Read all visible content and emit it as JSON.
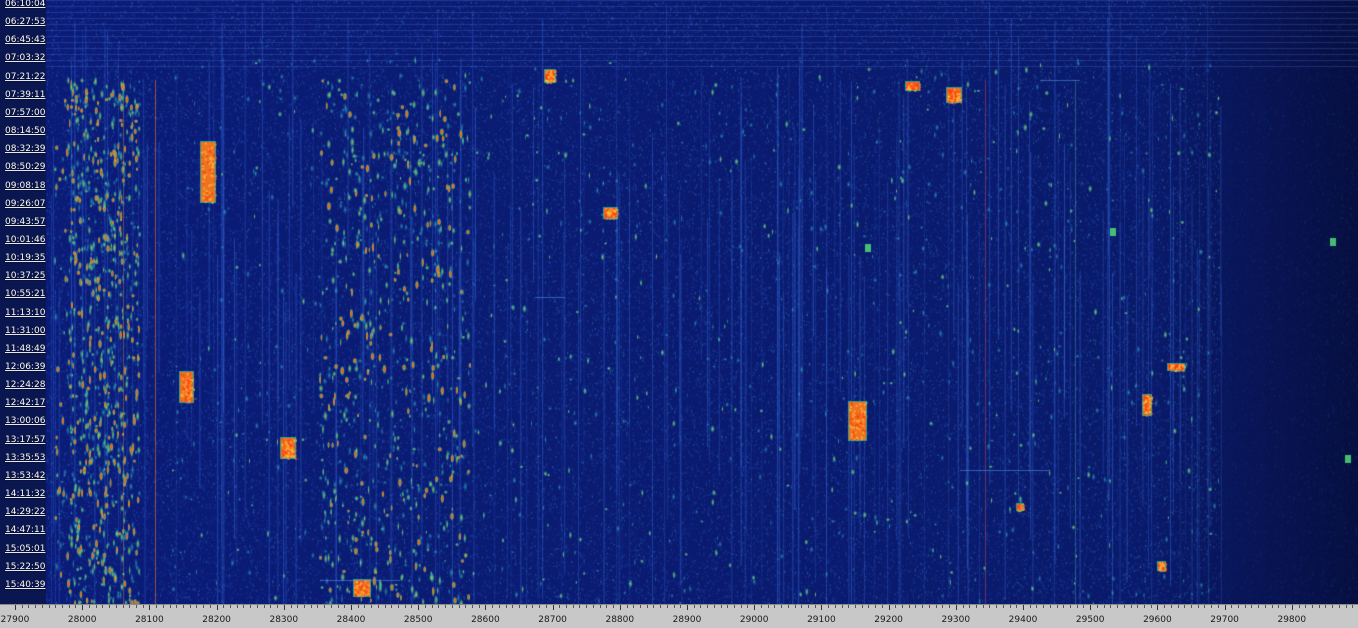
{
  "waterfall": {
    "time_labels": [
      "06:10:04",
      "06:27:53",
      "06:45:43",
      "07:03:32",
      "07:21:22",
      "07:39:11",
      "07:57:00",
      "08:14:50",
      "08:32:39",
      "08:50:29",
      "09:08:18",
      "09:26:07",
      "09:43:57",
      "10:01:46",
      "10:19:35",
      "10:37:25",
      "10:55:21",
      "11:13:10",
      "11:31:00",
      "11:48:49",
      "12:06:39",
      "12:24:28",
      "12:42:17",
      "13:00:06",
      "13:17:57",
      "13:35:53",
      "13:53:42",
      "14:11:32",
      "14:29:22",
      "14:47:11",
      "15:05:01",
      "15:22:50",
      "15:40:39"
    ],
    "freq_labels": [
      "27900",
      "28000",
      "28100",
      "28200",
      "28300",
      "28400",
      "28500",
      "28600",
      "28700",
      "28800",
      "28900",
      "29000",
      "29100",
      "29200",
      "29300",
      "29400",
      "29500",
      "29600",
      "29700",
      "29800"
    ],
    "colors": {
      "background": "#0a1a6e",
      "low": "#1c3fb0",
      "mid": "#2fb7a5",
      "high": "#f08a1c",
      "peak": "#ff3a10"
    }
  }
}
